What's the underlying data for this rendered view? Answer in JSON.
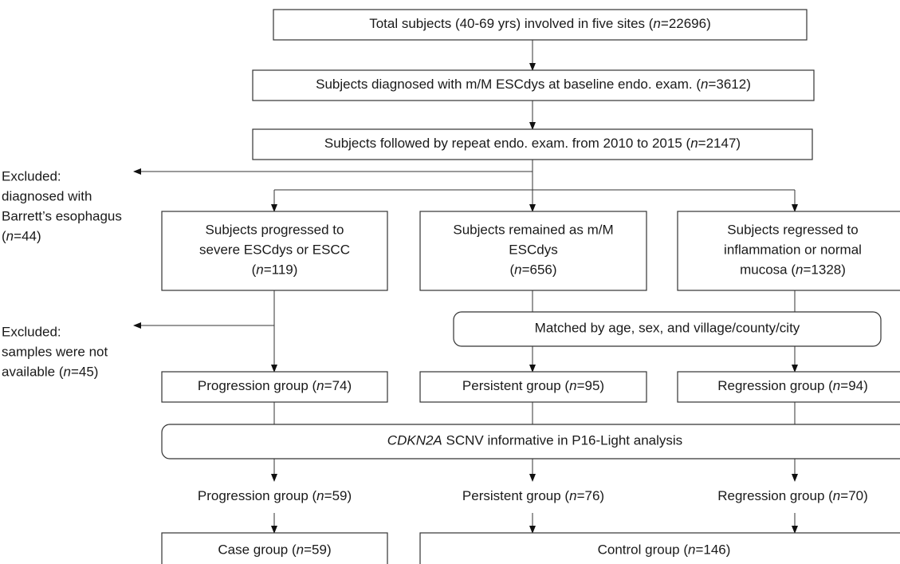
{
  "nodes": [
    {
      "lines": [
        [
          "Total subjects (40-69 yrs) involved in five sites  (",
          {
            "italic": "n"
          },
          "=22696)"
        ]
      ]
    },
    {
      "lines": [
        [
          "Subjects diagnosed with m/M ESCdys at baseline endo. exam. (",
          {
            "italic": "n"
          },
          "=3612)"
        ]
      ]
    },
    {
      "lines": [
        [
          "Subjects followed by repeat endo. exam. from 2010 to 2015 (",
          {
            "italic": "n"
          },
          "=2147)"
        ]
      ]
    },
    {
      "lines": [
        [
          "Excluded:"
        ],
        [
          "diagnosed with"
        ],
        [
          "Barrett’s esophagus"
        ],
        [
          "(",
          {
            "italic": "n"
          },
          "=44)"
        ]
      ]
    },
    {
      "lines": [
        [
          "Subjects progressed to"
        ],
        [
          "severe ESCdys or ESCC"
        ],
        [
          "(",
          {
            "italic": "n"
          },
          "=119)"
        ]
      ]
    },
    {
      "lines": [
        [
          "Subjects remained as m/M"
        ],
        [
          "ESCdys"
        ],
        [
          "(",
          {
            "italic": "n"
          },
          "=656)"
        ]
      ]
    },
    {
      "lines": [
        [
          "Subjects regressed to"
        ],
        [
          "inflammation or normal"
        ],
        [
          "mucosa (",
          {
            "italic": "n"
          },
          "=1328)"
        ]
      ]
    },
    {
      "lines": [
        [
          "Excluded:"
        ],
        [
          "samples were not"
        ],
        [
          "available (",
          {
            "italic": "n"
          },
          "=45)"
        ]
      ]
    },
    {
      "lines": [
        [
          "Matched by age, sex, and village/county/city"
        ]
      ]
    },
    {
      "lines": [
        [
          "Progression group (",
          {
            "italic": "n"
          },
          "=74)"
        ]
      ]
    },
    {
      "lines": [
        [
          "Persistent group (",
          {
            "italic": "n"
          },
          "=95)"
        ]
      ]
    },
    {
      "lines": [
        [
          "Regression group (",
          {
            "italic": "n"
          },
          "=94)"
        ]
      ]
    },
    {
      "lines": [
        [
          {
            "italic": "CDKN2A"
          },
          " SCNV informative in P16-Light analysis"
        ]
      ]
    },
    {
      "lines": [
        [
          "Progression group (",
          {
            "italic": "n"
          },
          "=59)"
        ]
      ]
    },
    {
      "lines": [
        [
          "Persistent group (",
          {
            "italic": "n"
          },
          "=76)"
        ]
      ]
    },
    {
      "lines": [
        [
          "Regression group (",
          {
            "italic": "n"
          },
          "=70)"
        ]
      ]
    },
    {
      "lines": [
        [
          "Case group (",
          {
            "italic": "n"
          },
          "=59)"
        ]
      ]
    },
    {
      "lines": [
        [
          "Control group (",
          {
            "italic": "n"
          },
          "=146)"
        ]
      ]
    }
  ]
}
